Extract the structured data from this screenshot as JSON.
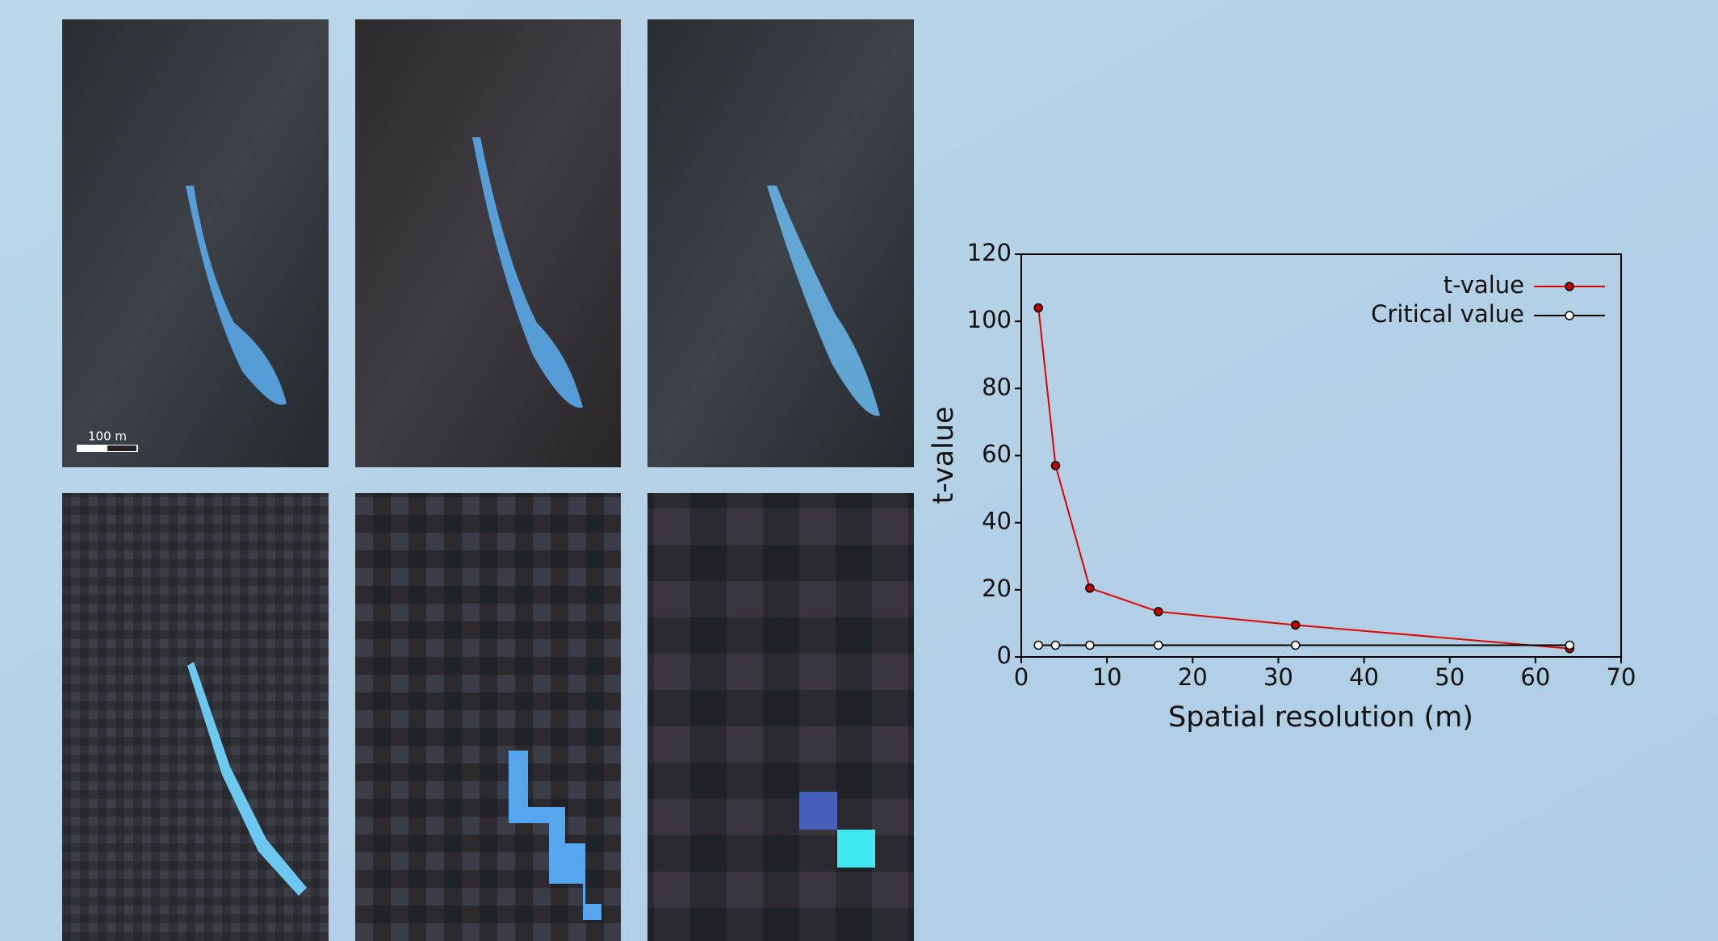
{
  "images": {
    "scale_bar_label": "100 m"
  },
  "chart_data": {
    "type": "line",
    "x_label": "Spatial resolution (m)",
    "y_label": "t-value",
    "x": [
      2,
      4,
      8,
      16,
      32,
      64
    ],
    "series": [
      {
        "name": "t-value",
        "color": "#e00000",
        "marker_fill": "#c00000",
        "values": [
          104,
          57,
          20.5,
          13.5,
          9.5,
          2.5
        ]
      },
      {
        "name": "Critical value",
        "color": "#000000",
        "marker_fill": "#ffffff",
        "values": [
          3.5,
          3.5,
          3.5,
          3.5,
          3.5,
          3.5
        ]
      }
    ],
    "xlim": [
      0,
      70
    ],
    "xticks": [
      0,
      10,
      20,
      30,
      40,
      50,
      60,
      70
    ],
    "ylim": [
      0,
      120
    ],
    "yticks": [
      0,
      20,
      40,
      60,
      80,
      100,
      120
    ],
    "grid": false,
    "legend": "upper right"
  }
}
